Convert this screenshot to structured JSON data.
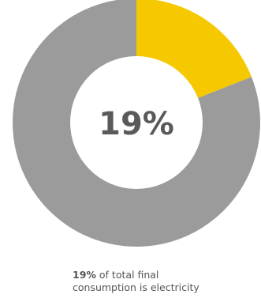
{
  "chart_data": {
    "type": "pie",
    "center_label": "19%",
    "slices": [
      {
        "value": 19,
        "color": "#f5c800"
      },
      {
        "value": 81,
        "color": "#9b9b9b"
      }
    ]
  },
  "caption": {
    "highlight": "19%",
    "line1_rest": " of total final",
    "line2": "consumption is electricity"
  }
}
